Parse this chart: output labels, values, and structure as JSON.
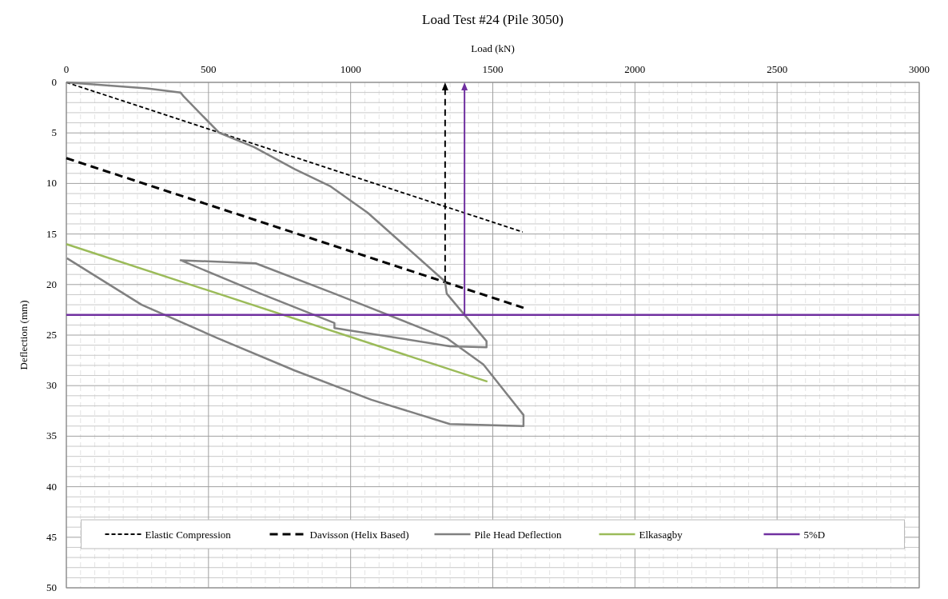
{
  "chart_data": {
    "type": "line",
    "title": "Load Test #24 (Pile 3050)",
    "xlabel": "Load (kN)",
    "ylabel": "Deflection (mm)",
    "xlim": [
      0,
      3000
    ],
    "xticks": [
      0,
      500,
      1000,
      1500,
      2000,
      2500,
      3000
    ],
    "ylim": [
      50,
      0
    ],
    "yticks": [
      0,
      5,
      10,
      15,
      20,
      25,
      30,
      35,
      40,
      45,
      50
    ],
    "grid": true,
    "legend": "bottom",
    "series": [
      {
        "name": "Elastic Compression",
        "color": "#000000",
        "line_style": "dotted",
        "x": [
          0,
          1605
        ],
        "values": [
          0,
          14.8
        ]
      },
      {
        "name": "Davisson (Helix Based)",
        "color": "#000000",
        "line_style": "dashed",
        "x": [
          0,
          1608
        ],
        "values": [
          7.5,
          22.3
        ]
      },
      {
        "name": "Pile Head Deflection",
        "color": "#808080",
        "line_style": "solid",
        "x": [
          0,
          283,
          402,
          413,
          538,
          660,
          804,
          930,
          1060,
          1196,
          1332,
          1338,
          1478,
          1478,
          1349,
          943,
          943,
          683,
          402,
          666,
          943,
          1338,
          1467,
          1608,
          1608,
          1349,
          1073,
          803,
          532,
          265,
          2
        ],
        "values": [
          0,
          0.6,
          1.0,
          1.4,
          5.0,
          6.4,
          8.6,
          10.3,
          12.9,
          16.3,
          19.7,
          20.9,
          25.6,
          26.2,
          26.1,
          24.3,
          23.8,
          20.9,
          17.6,
          17.9,
          20.9,
          25.3,
          27.9,
          32.9,
          34.0,
          33.8,
          31.4,
          28.5,
          25.3,
          22.0,
          17.4
        ]
      },
      {
        "name": "Elkasagby",
        "color": "#9bbb59",
        "line_style": "solid",
        "x": [
          0,
          1481
        ],
        "values": [
          16,
          29.6
        ]
      },
      {
        "name": "5%D",
        "color": "#7030a0",
        "line_style": "solid",
        "x": [
          0,
          3000
        ],
        "values": [
          23,
          23
        ]
      }
    ]
  }
}
